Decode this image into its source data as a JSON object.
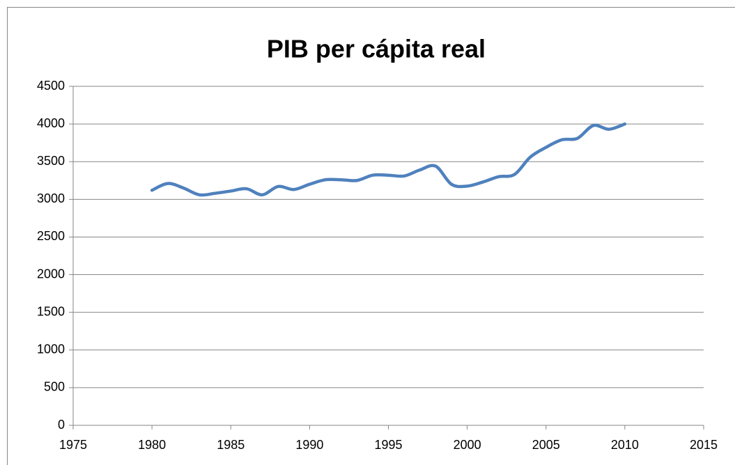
{
  "chart_data": {
    "type": "line",
    "title": "PIB per cápita real",
    "x": [
      1980,
      1981,
      1982,
      1983,
      1984,
      1985,
      1986,
      1987,
      1988,
      1989,
      1990,
      1991,
      1992,
      1993,
      1994,
      1995,
      1996,
      1997,
      1998,
      1999,
      2000,
      2001,
      2002,
      2003,
      2004,
      2005,
      2006,
      2007,
      2008,
      2009,
      2010
    ],
    "series": [
      {
        "name": "PIB per cápita real",
        "color": "#4f81bd",
        "values": [
          3120,
          3210,
          3150,
          3060,
          3080,
          3110,
          3140,
          3060,
          3170,
          3130,
          3200,
          3260,
          3260,
          3250,
          3320,
          3320,
          3310,
          3390,
          3440,
          3200,
          3175,
          3230,
          3300,
          3330,
          3560,
          3690,
          3790,
          3810,
          3980,
          3930,
          4000
        ]
      }
    ],
    "xlim": [
      1975,
      2015
    ],
    "xticks": [
      1975,
      1980,
      1985,
      1990,
      1995,
      2000,
      2005,
      2010,
      2015
    ],
    "ylim": [
      0,
      4500
    ],
    "yticks": [
      0,
      500,
      1000,
      1500,
      2000,
      2500,
      3000,
      3500,
      4000,
      4500
    ],
    "grid": true,
    "smooth": true
  }
}
